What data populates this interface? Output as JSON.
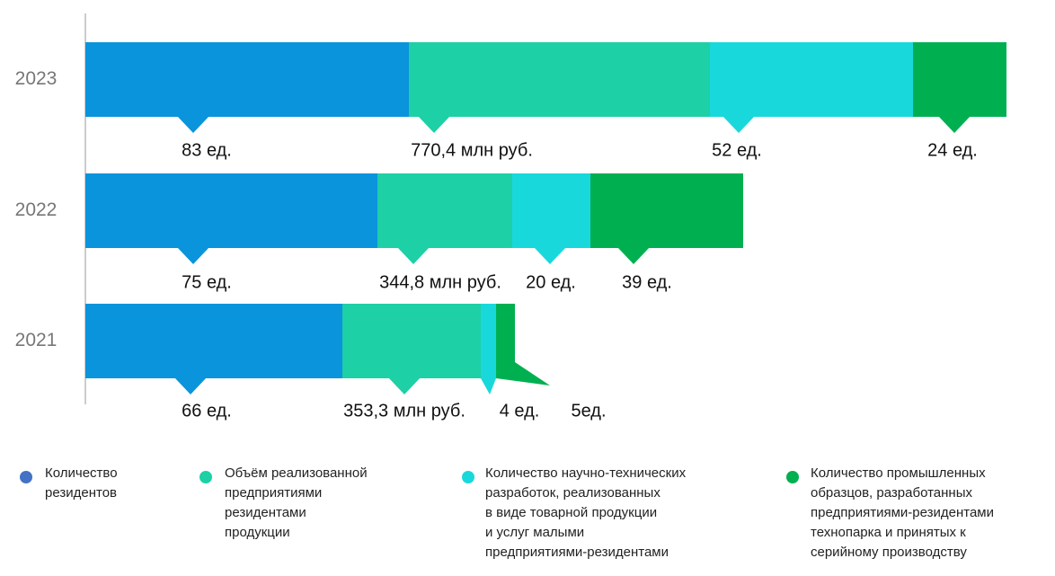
{
  "chart_data": {
    "type": "bar",
    "categories": [
      "2023",
      "2022",
      "2021"
    ],
    "series": [
      {
        "name": "Количество\nрезидентов",
        "color": "#0a94dc",
        "values": [
          83,
          75,
          66
        ],
        "value_labels": [
          "83 ед.",
          "75 ед.",
          "66 ед."
        ]
      },
      {
        "name": "Объём реализованной\nпредприятиями\nрезидентами\nпродукции",
        "color": "#1dd0a6",
        "values": [
          770.4,
          344.8,
          353.3
        ],
        "value_labels": [
          "770,4 млн руб.",
          "344,8 млн руб.",
          "353,3 млн руб."
        ]
      },
      {
        "name": "Количество научно-технических\nразработок, реализованных\nв виде товарной продукции\nи услуг малыми\nпредприятиями-резидентами",
        "color": "#19d8dc",
        "values": [
          52,
          20,
          4
        ],
        "value_labels": [
          "52 ед.",
          "20 ед.",
          "4 ед."
        ]
      },
      {
        "name": "Количество промышленных\nобразцов, разработанных\nпредприятиями-резидентами\nтехнопарка и принятых к\nсерийному производству",
        "color": "#00b050",
        "values": [
          24,
          39,
          5
        ],
        "value_labels": [
          "24 ед.",
          "39 ед.",
          "5ед."
        ]
      }
    ]
  }
}
